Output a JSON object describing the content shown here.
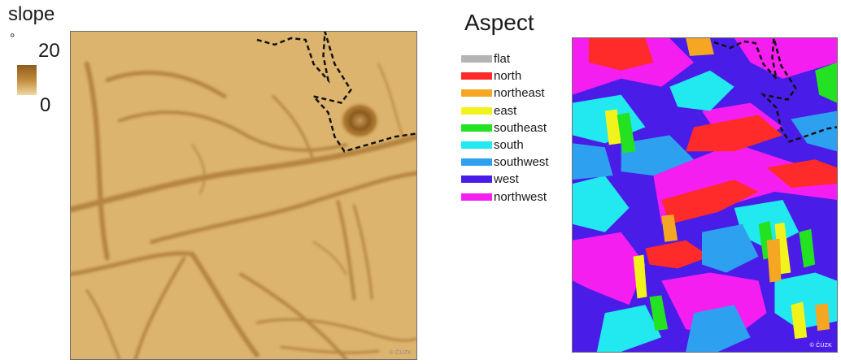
{
  "slope_legend": {
    "title": "slope",
    "unit": "°",
    "max_label": "20",
    "min_label": "0",
    "ramp_colors": [
      "#8e5d1c",
      "#c18b3d",
      "#f0d7a2"
    ],
    "credit": "© ČÚZK"
  },
  "aspect_legend": {
    "title": "Aspect",
    "items": [
      {
        "label": "flat",
        "color": "#b4b4b4"
      },
      {
        "label": "north",
        "color": "#ff2a2a"
      },
      {
        "label": "northeast",
        "color": "#f5a623"
      },
      {
        "label": "east",
        "color": "#f2f21c"
      },
      {
        "label": "southeast",
        "color": "#22e222"
      },
      {
        "label": "south",
        "color": "#22e8f0"
      },
      {
        "label": "southwest",
        "color": "#2ea0f0"
      },
      {
        "label": "west",
        "color": "#4a1ce8"
      },
      {
        "label": "northwest",
        "color": "#f51ef0"
      }
    ],
    "credit": "© ČÚZK"
  },
  "colors": {
    "slope_base": "#dcb46e",
    "slope_dark": "#a8772f",
    "boundary_line": "#111111"
  }
}
